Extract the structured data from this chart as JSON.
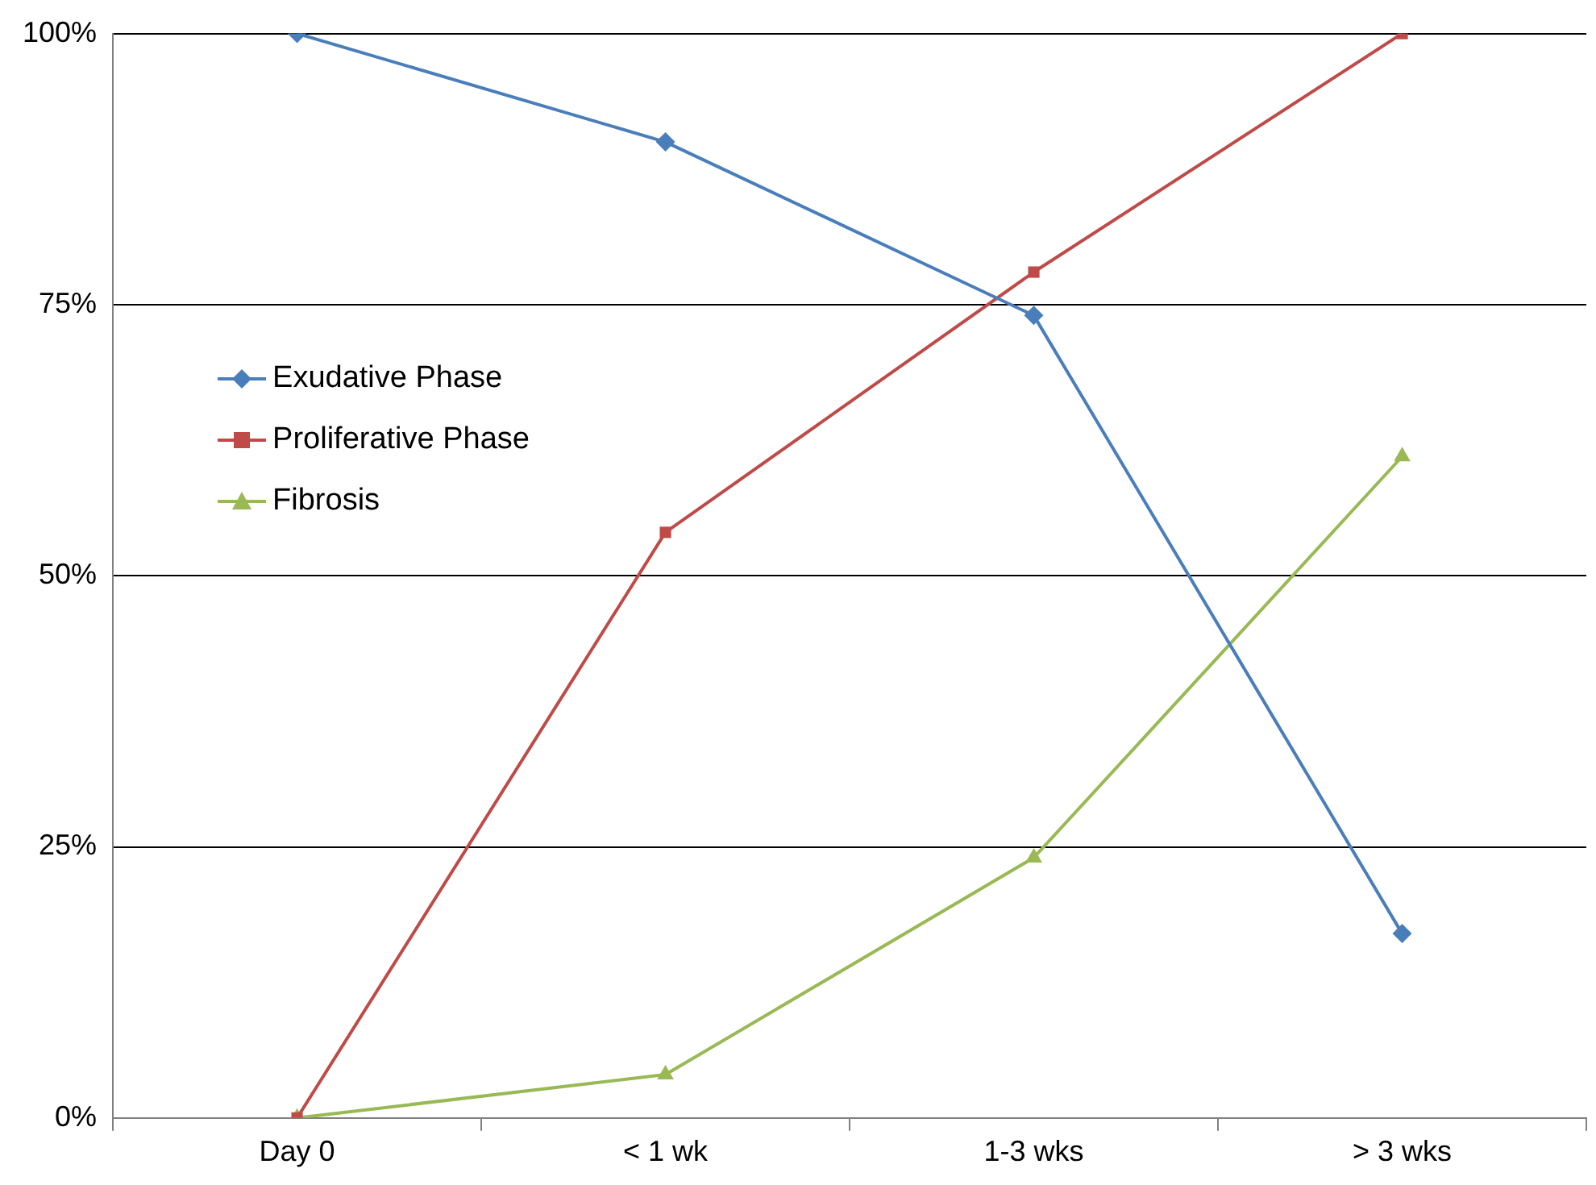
{
  "chart_data": {
    "type": "line",
    "categories": [
      "Day 0",
      "< 1 wk",
      "1-3 wks",
      "> 3 wks"
    ],
    "series": [
      {
        "name": "Exudative Phase",
        "color": "#4a7ebb",
        "marker": "diamond",
        "values": [
          100,
          90,
          74,
          17
        ]
      },
      {
        "name": "Proliferative Phase",
        "color": "#be4b48",
        "marker": "square",
        "values": [
          0,
          54,
          78,
          100
        ]
      },
      {
        "name": "Fibrosis",
        "color": "#98b954",
        "marker": "triangle",
        "values": [
          0,
          4,
          24,
          61
        ]
      }
    ],
    "ylim": [
      0,
      100
    ],
    "yticks": [
      {
        "value": 0,
        "label": "0%"
      },
      {
        "value": 25,
        "label": "25%"
      },
      {
        "value": 50,
        "label": "50%"
      },
      {
        "value": 75,
        "label": "75%"
      },
      {
        "value": 100,
        "label": "100%"
      }
    ],
    "grid": "y",
    "legend": "top left",
    "line_style": "solid"
  }
}
